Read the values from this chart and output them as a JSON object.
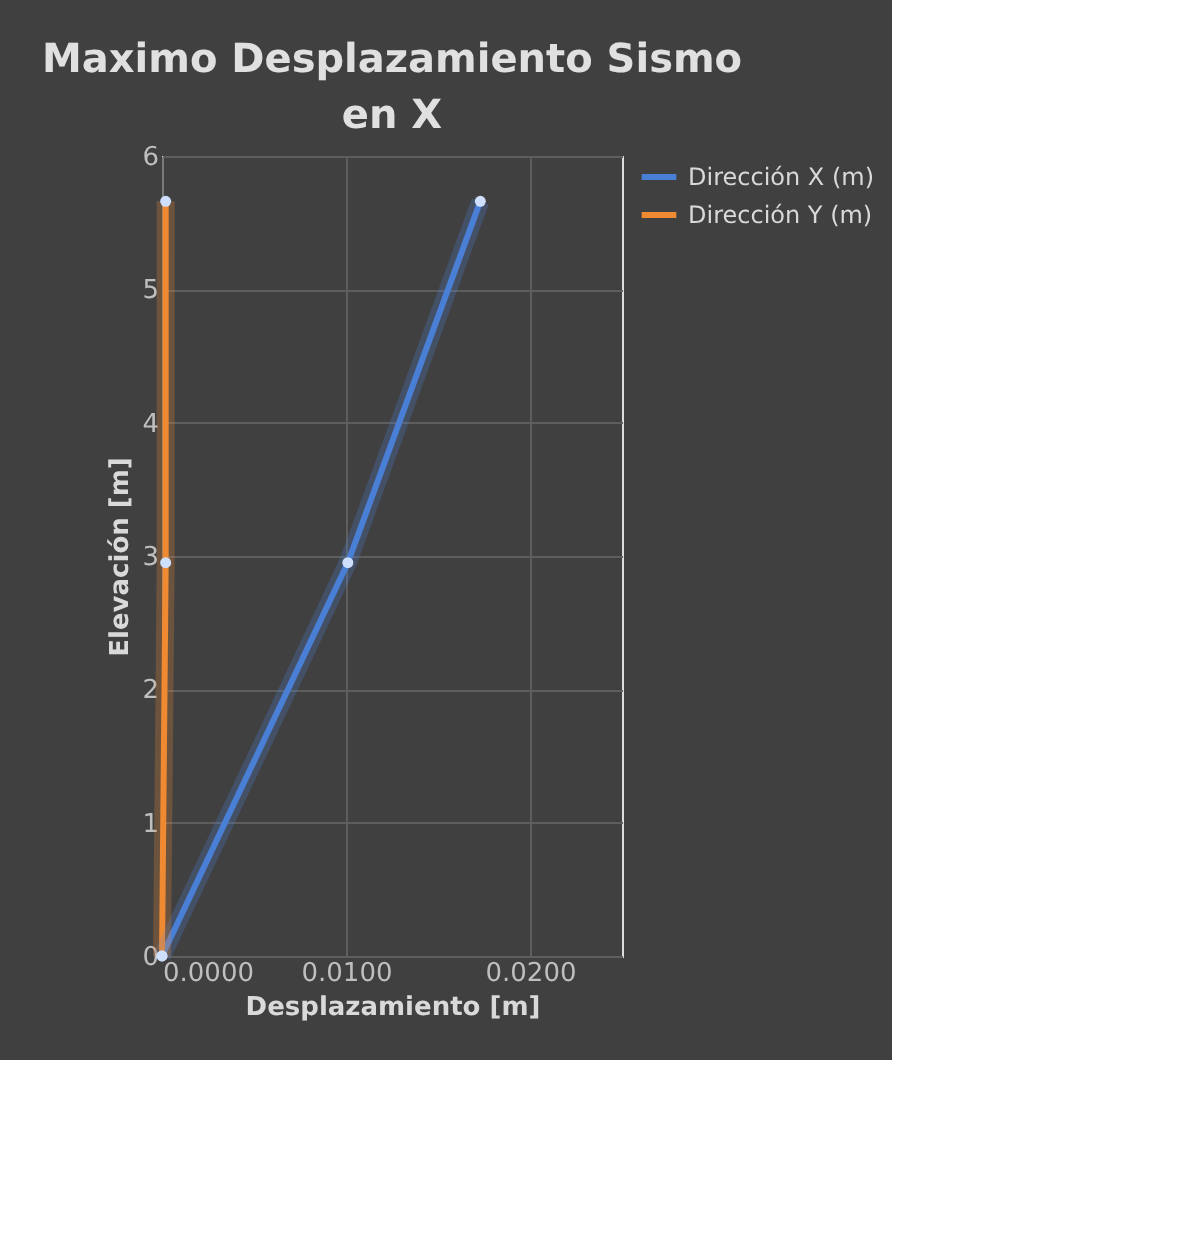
{
  "chart_data": {
    "type": "line",
    "title": "Maximo Desplazamiento Sismo en X",
    "xlabel": "Desplazamiento [m]",
    "ylabel": "Elevación [m]",
    "series": [
      {
        "name": "Dirección X (m)",
        "color": "#4a7fd6",
        "x": [
          0,
          0.0101,
          0.0173
        ],
        "values": [
          0,
          2.95,
          5.66
        ]
      },
      {
        "name": "Dirección Y (m)",
        "color": "#f08a32",
        "x": [
          0,
          0.0002,
          0.0002
        ],
        "values": [
          0,
          2.95,
          5.66
        ]
      }
    ],
    "xlim": [
      0,
      0.025
    ],
    "xticks": [
      {
        "value": 0,
        "label": "0.0000"
      },
      {
        "value": 0.01,
        "label": "0.0100"
      },
      {
        "value": 0.02,
        "label": "0.0200"
      }
    ],
    "ylim": [
      0,
      6
    ],
    "yticks": [
      0,
      1,
      2,
      3,
      4,
      5,
      6
    ],
    "grid": true,
    "legend": "right",
    "marker": "circle",
    "line_style": "solid"
  }
}
